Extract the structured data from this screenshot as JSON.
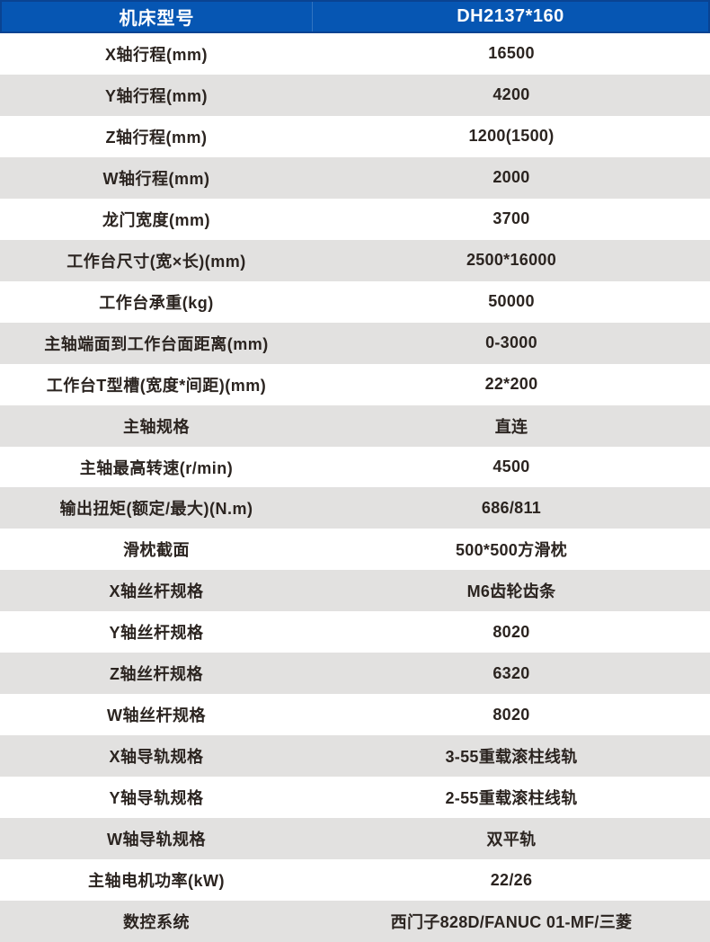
{
  "colors": {
    "header_bg": "#0656b3",
    "header_border": "#0a4392",
    "header_text": "#ffffff",
    "row_alt_bg": "#e2e1e0",
    "row_bg": "#ffffff",
    "text_color": "#2b2420"
  },
  "table": {
    "header": {
      "model_label": "机床型号",
      "model_value": "DH2137*160"
    },
    "rows": [
      {
        "label": "X轴行程(mm)",
        "value": "16500"
      },
      {
        "label": "Y轴行程(mm)",
        "value": "4200"
      },
      {
        "label": "Z轴行程(mm)",
        "value": "1200(1500)"
      },
      {
        "label": "W轴行程(mm)",
        "value": "2000"
      },
      {
        "label": "龙门宽度(mm)",
        "value": "3700"
      },
      {
        "label": "工作台尺寸(宽×长)(mm)",
        "value": "2500*16000"
      },
      {
        "label": "工作台承重(kg)",
        "value": "50000"
      },
      {
        "label": "主轴端面到工作台面距离(mm)",
        "value": "0-3000"
      },
      {
        "label": "工作台T型槽(宽度*间距)(mm)",
        "value": "22*200"
      },
      {
        "label": "主轴规格",
        "value": "直连"
      },
      {
        "label": "主轴最高转速(r/min)",
        "value": "4500"
      },
      {
        "label": "输出扭矩(额定/最大)(N.m)",
        "value": "686/811"
      },
      {
        "label": "滑枕截面",
        "value": "500*500方滑枕"
      },
      {
        "label": "X轴丝杆规格",
        "value": "M6齿轮齿条"
      },
      {
        "label": "Y轴丝杆规格",
        "value": "8020"
      },
      {
        "label": "Z轴丝杆规格",
        "value": "6320"
      },
      {
        "label": "W轴丝杆规格",
        "value": "8020"
      },
      {
        "label": "X轴导轨规格",
        "value": "3-55重载滚柱线轨"
      },
      {
        "label": "Y轴导轨规格",
        "value": "2-55重载滚柱线轨"
      },
      {
        "label": "W轴导轨规格",
        "value": "双平轨"
      },
      {
        "label": "主轴电机功率(kW)",
        "value": "22/26"
      },
      {
        "label": "数控系统",
        "value": "西门子828D/FANUC 01-MF/三菱"
      }
    ]
  }
}
